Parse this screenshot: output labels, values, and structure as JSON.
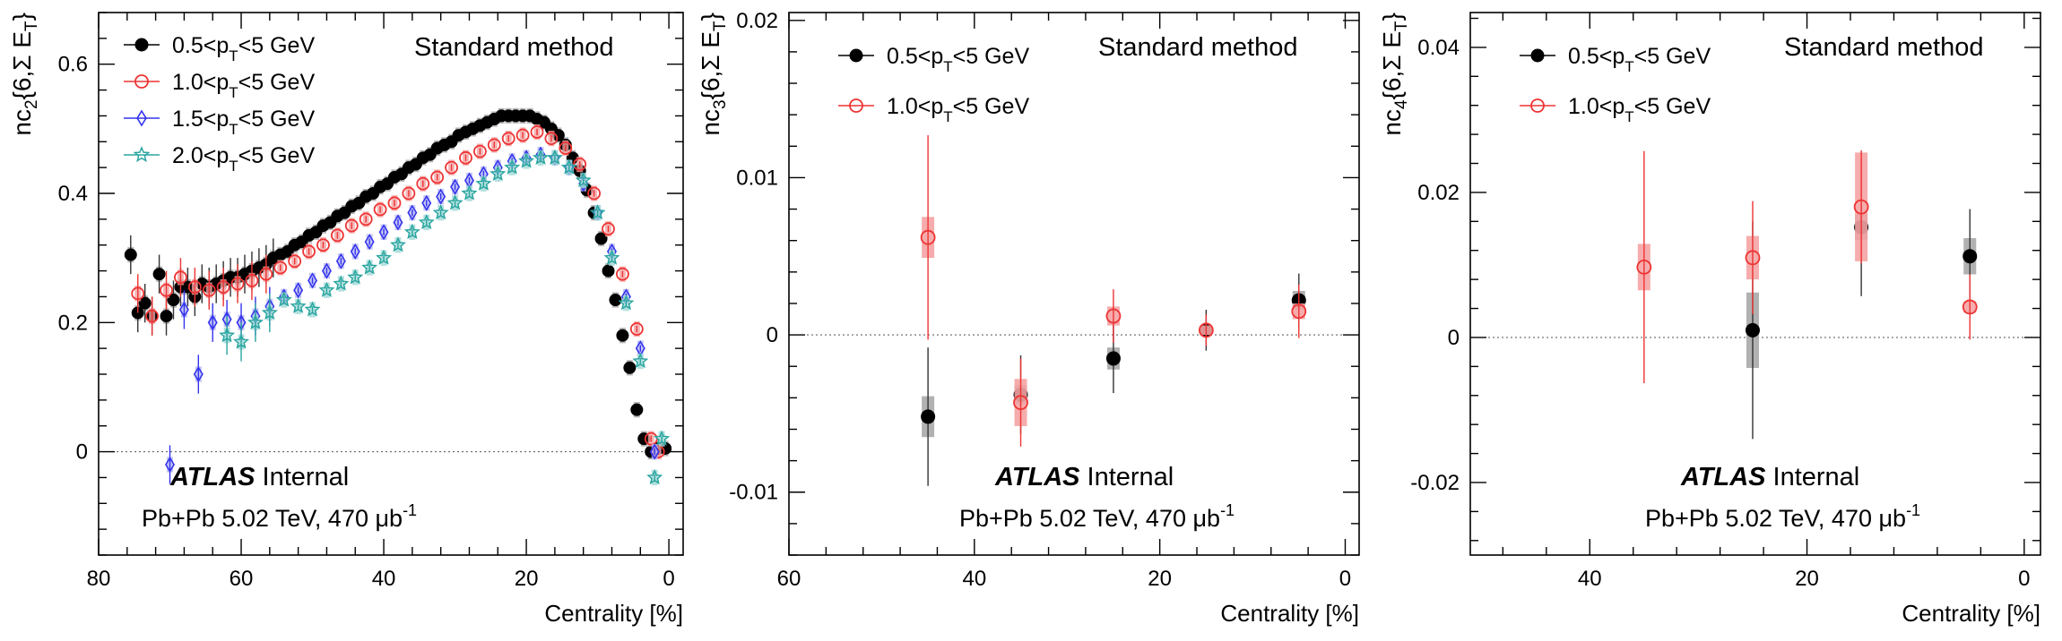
{
  "figure": {
    "experiment": "ATLAS",
    "internal_label": "Internal",
    "collision": "Pb+Pb 5.02 TeV, 470 μb",
    "lumi_exp": "-1"
  },
  "chart_data": [
    {
      "type": "scatter",
      "ylabel": {
        "pre": "nc",
        "sub": "2",
        "post": "{6,Σ E",
        "sub2": "T",
        "end": "}"
      },
      "xlabel": "Centrality [%]",
      "method": "Standard method",
      "xlim": [
        80,
        -2
      ],
      "ylim": [
        -0.16,
        0.68
      ],
      "xticks": [
        80,
        60,
        40,
        20,
        0
      ],
      "xticklabels": [
        "80",
        "60",
        "40",
        "20",
        "0"
      ],
      "yticks": [
        0,
        0.2,
        0.4,
        0.6
      ],
      "yticklabels": [
        "0",
        "0.2",
        "0.4",
        "0.6"
      ],
      "zero_line": true,
      "legend": {
        "position": "top-left",
        "style": "long"
      },
      "series": [
        {
          "name_pre": "0.5<p",
          "name_sub": "T",
          "name_post": "<5 GeV",
          "color": "#000000",
          "marker": "filled-circle",
          "x": [
            75.5,
            74.5,
            73.5,
            72.5,
            71.5,
            70.5,
            69.5,
            68.5,
            67.5,
            66.5,
            65.5,
            64.5,
            63.5,
            62.5,
            61.5,
            60.5,
            59.5,
            58.5,
            57.5,
            56.5,
            55.5,
            54.5,
            53.5,
            52.5,
            51.5,
            50.5,
            49.5,
            48.5,
            47.5,
            46.5,
            45.5,
            44.5,
            43.5,
            42.5,
            41.5,
            40.5,
            39.5,
            38.5,
            37.5,
            36.5,
            35.5,
            34.5,
            33.5,
            32.5,
            31.5,
            30.5,
            29.5,
            28.5,
            27.5,
            26.5,
            25.5,
            24.5,
            23.5,
            22.5,
            21.5,
            20.5,
            19.5,
            18.5,
            17.5,
            16.5,
            15.5,
            14.5,
            13.5,
            12.5,
            11.5,
            10.5,
            9.5,
            8.5,
            7.5,
            6.5,
            5.5,
            4.5,
            3.5,
            2.5,
            1.5,
            0.5
          ],
          "y": [
            0.305,
            0.215,
            0.23,
            0.21,
            0.275,
            0.21,
            0.235,
            0.255,
            0.255,
            0.24,
            0.26,
            0.255,
            0.26,
            0.265,
            0.27,
            0.27,
            0.275,
            0.28,
            0.285,
            0.29,
            0.3,
            0.305,
            0.31,
            0.32,
            0.325,
            0.335,
            0.34,
            0.35,
            0.355,
            0.365,
            0.37,
            0.38,
            0.385,
            0.395,
            0.4,
            0.41,
            0.415,
            0.425,
            0.43,
            0.44,
            0.445,
            0.455,
            0.46,
            0.47,
            0.475,
            0.48,
            0.49,
            0.495,
            0.5,
            0.505,
            0.51,
            0.515,
            0.52,
            0.52,
            0.52,
            0.52,
            0.52,
            0.515,
            0.51,
            0.5,
            0.49,
            0.475,
            0.455,
            0.435,
            0.405,
            0.37,
            0.33,
            0.28,
            0.235,
            0.18,
            0.13,
            0.065,
            0.02,
            0.0,
            0.005,
            0.005
          ]
        },
        {
          "name_pre": "1.0<p",
          "name_sub": "T",
          "name_post": "<5 GeV",
          "color": "#ee3333",
          "marker": "open-circle",
          "x": [
            74.5,
            72.5,
            70.5,
            68.5,
            66.5,
            64.5,
            62.5,
            60.5,
            58.5,
            56.5,
            54.5,
            52.5,
            50.5,
            48.5,
            46.5,
            44.5,
            42.5,
            40.5,
            38.5,
            36.5,
            34.5,
            32.5,
            30.5,
            28.5,
            26.5,
            24.5,
            22.5,
            20.5,
            18.5,
            16.5,
            14.5,
            12.5,
            10.5,
            8.5,
            6.5,
            4.5,
            2.5,
            1.5
          ],
          "y": [
            0.245,
            0.21,
            0.25,
            0.27,
            0.255,
            0.25,
            0.255,
            0.26,
            0.265,
            0.275,
            0.285,
            0.295,
            0.31,
            0.32,
            0.335,
            0.35,
            0.36,
            0.375,
            0.385,
            0.4,
            0.415,
            0.425,
            0.44,
            0.455,
            0.465,
            0.475,
            0.485,
            0.49,
            0.495,
            0.485,
            0.47,
            0.445,
            0.4,
            0.345,
            0.275,
            0.19,
            0.02,
            0.0
          ]
        },
        {
          "name_pre": "1.5<p",
          "name_sub": "T",
          "name_post": "<5 GeV",
          "color": "#3333ee",
          "marker": "open-diamond",
          "x": [
            70,
            68,
            66,
            64,
            62,
            60,
            58,
            56,
            54,
            52,
            50,
            48,
            46,
            44,
            42,
            40,
            38,
            36,
            34,
            32,
            30,
            28,
            26,
            24,
            22,
            20,
            18,
            16,
            14,
            12,
            10,
            8,
            6,
            4,
            2
          ],
          "y": [
            -0.02,
            0.22,
            0.12,
            0.2,
            0.205,
            0.2,
            0.21,
            0.225,
            0.24,
            0.25,
            0.265,
            0.28,
            0.295,
            0.31,
            0.325,
            0.34,
            0.355,
            0.37,
            0.385,
            0.395,
            0.41,
            0.42,
            0.43,
            0.44,
            0.45,
            0.455,
            0.46,
            0.455,
            0.44,
            0.415,
            0.37,
            0.31,
            0.24,
            0.16,
            0.0
          ]
        },
        {
          "name_pre": "2.0<p",
          "name_sub": "T",
          "name_post": "<5 GeV",
          "color": "#2aa5a0",
          "marker": "open-star",
          "x": [
            62,
            60,
            58,
            56,
            54,
            52,
            50,
            48,
            46,
            44,
            42,
            40,
            38,
            36,
            34,
            32,
            30,
            28,
            26,
            24,
            22,
            20,
            18,
            16,
            14,
            12,
            10,
            8,
            6,
            4,
            2,
            1
          ],
          "y": [
            0.18,
            0.17,
            0.2,
            0.215,
            0.235,
            0.225,
            0.22,
            0.25,
            0.26,
            0.27,
            0.285,
            0.3,
            0.32,
            0.34,
            0.355,
            0.37,
            0.385,
            0.4,
            0.415,
            0.43,
            0.44,
            0.45,
            0.455,
            0.455,
            0.44,
            0.42,
            0.37,
            0.3,
            0.23,
            0.14,
            -0.04,
            0.02
          ]
        }
      ]
    },
    {
      "type": "scatter",
      "ylabel": {
        "pre": "nc",
        "sub": "3",
        "post": "{6,Σ E",
        "sub2": "T",
        "end": "}"
      },
      "xlabel": "Centrality [%]",
      "method": "Standard method",
      "xlim": [
        60,
        -1.5
      ],
      "ylim": [
        -0.014,
        0.0205
      ],
      "xticks": [
        60,
        40,
        20,
        0
      ],
      "xticklabels": [
        "60",
        "40",
        "20",
        "0"
      ],
      "yticks": [
        -0.01,
        0,
        0.01,
        0.02
      ],
      "yticklabels": [
        "-0.01",
        "0",
        "0.01",
        "0.02"
      ],
      "zero_line": true,
      "legend": {
        "position": "top-left",
        "style": "short"
      },
      "series": [
        {
          "name_pre": "0.5<p",
          "name_sub": "T",
          "name_post": "<5 GeV",
          "color": "#000000",
          "marker": "filled-circle",
          "x": [
            45,
            35,
            25,
            15,
            5
          ],
          "y": [
            -0.0052,
            -0.0038,
            -0.0015,
            0.0003,
            0.0022
          ],
          "err": [
            0.0044,
            0.0025,
            0.0022,
            0.0013,
            0.0017
          ],
          "syst": [
            0.0013,
            0.0006,
            0.0007,
            0.0002,
            0.0006
          ]
        },
        {
          "name_pre": "1.0<p",
          "name_sub": "T",
          "name_post": "<5 GeV",
          "color": "#ee3333",
          "marker": "open-circle",
          "x": [
            45,
            35,
            25,
            15,
            5
          ],
          "y": [
            0.0062,
            -0.0043,
            0.0012,
            0.0003,
            0.0015
          ],
          "err": [
            0.0065,
            0.0028,
            0.0017,
            0.001,
            0.0017
          ],
          "syst": [
            0.0013,
            0.0015,
            0.0006,
            0.0003,
            0.0005
          ]
        }
      ]
    },
    {
      "type": "scatter",
      "ylabel": {
        "pre": "nc",
        "sub": "4",
        "post": "{6,Σ E",
        "sub2": "T",
        "end": "}"
      },
      "xlabel": "Centrality [%]",
      "method": "Standard method",
      "xlim": [
        51,
        -1.5
      ],
      "ylim": [
        -0.03,
        0.0448
      ],
      "xticks": [
        40,
        20,
        0
      ],
      "xticklabels": [
        "40",
        "20",
        "0"
      ],
      "yticks": [
        -0.02,
        0,
        0.02,
        0.04
      ],
      "yticklabels": [
        "-0.02",
        "0",
        "0.02",
        "0.04"
      ],
      "zero_line": true,
      "legend": {
        "position": "top-left",
        "style": "short"
      },
      "series": [
        {
          "name_pre": "0.5<p",
          "name_sub": "T",
          "name_post": "<5 GeV",
          "color": "#000000",
          "marker": "filled-circle",
          "x": [
            25,
            15,
            5
          ],
          "y": [
            0.001,
            0.0152,
            0.0112
          ],
          "err": [
            0.015,
            0.0095,
            0.0065
          ],
          "syst": [
            0.0052,
            0.0018,
            0.0025
          ]
        },
        {
          "name_pre": "1.0<p",
          "name_sub": "T",
          "name_post": "<5 GeV",
          "color": "#ee3333",
          "marker": "open-circle",
          "x": [
            35,
            25,
            15,
            5
          ],
          "y": [
            0.0097,
            0.011,
            0.018,
            0.0042
          ],
          "err": [
            0.016,
            0.0078,
            0.0078,
            0.0045
          ],
          "syst": [
            0.0032,
            0.003,
            0.0075,
            0.0008
          ]
        }
      ]
    }
  ]
}
